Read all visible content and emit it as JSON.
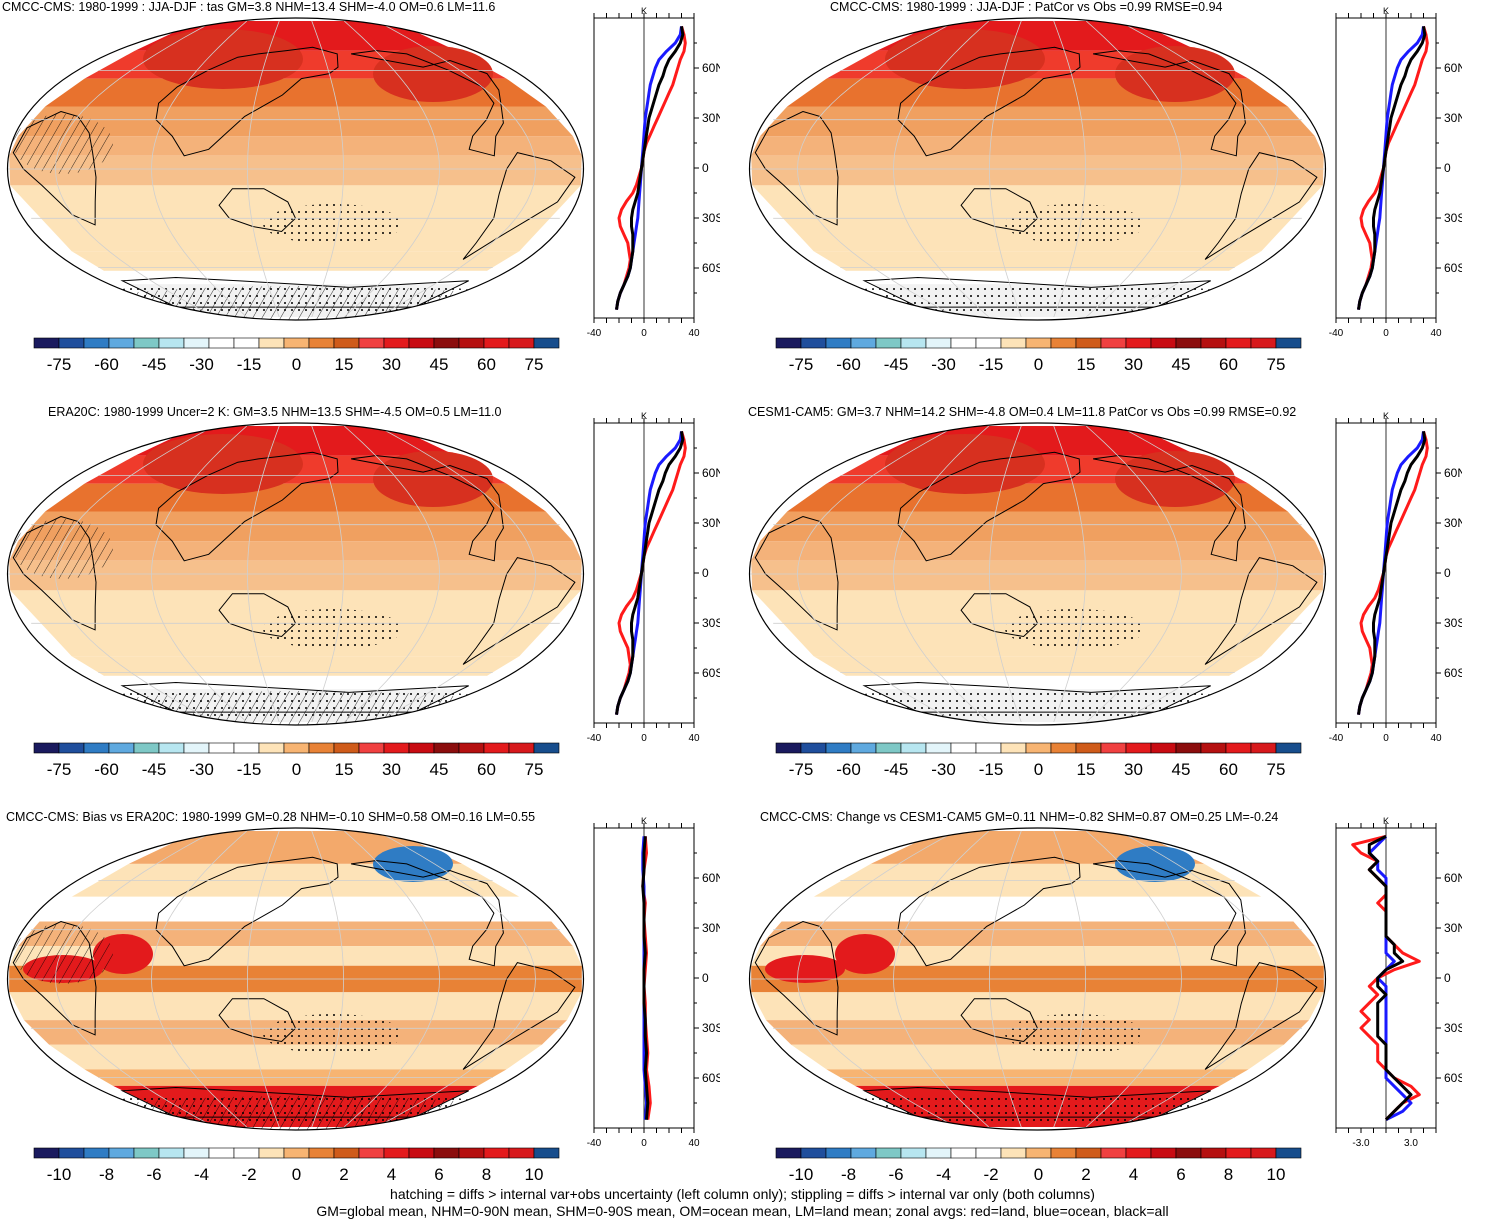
{
  "panels": [
    {
      "title": "CMCC-CMS: 1980-1999 : JJA-DJF : tas GM=3.8 NHM=13.4 SHM=-4.0 OM=0.6 LM=11.6",
      "colorbar_labels": [
        "-75",
        "-60",
        "-45",
        "-30",
        "-15",
        "0",
        "15",
        "30",
        "45",
        "60",
        "75"
      ],
      "zonal_x_ticks": [
        "-40",
        "0",
        "40"
      ],
      "zonal_y_ticks": [
        "60N",
        "30N",
        "0",
        "30S",
        "60S"
      ],
      "zonal_unit": "K",
      "hatching": true,
      "style": "warm"
    },
    {
      "title": "CMCC-CMS: 1980-1999 : JJA-DJF : PatCor vs Obs =0.99 RMSE=0.94",
      "colorbar_labels": [
        "-75",
        "-60",
        "-45",
        "-30",
        "-15",
        "0",
        "15",
        "30",
        "45",
        "60",
        "75"
      ],
      "zonal_x_ticks": [
        "-40",
        "0",
        "40"
      ],
      "zonal_y_ticks": [
        "60N",
        "30N",
        "0",
        "30S",
        "60S"
      ],
      "zonal_unit": "K",
      "hatching": false,
      "style": "warm"
    },
    {
      "title": "ERA20C: 1980-1999 Uncer=2 K: GM=3.5 NHM=13.5 SHM=-4.5 OM=0.5 LM=11.0",
      "colorbar_labels": [
        "-75",
        "-60",
        "-45",
        "-30",
        "-15",
        "0",
        "15",
        "30",
        "45",
        "60",
        "75"
      ],
      "zonal_x_ticks": [
        "-40",
        "0",
        "40"
      ],
      "zonal_y_ticks": [
        "60N",
        "30N",
        "0",
        "30S",
        "60S"
      ],
      "zonal_unit": "K",
      "hatching": true,
      "style": "warm"
    },
    {
      "title": "CESM1-CAM5: GM=3.7 NHM=14.2 SHM=-4.8 OM=0.4 LM=11.8 PatCor vs Obs =0.99 RMSE=0.92",
      "colorbar_labels": [
        "-75",
        "-60",
        "-45",
        "-30",
        "-15",
        "0",
        "15",
        "30",
        "45",
        "60",
        "75"
      ],
      "zonal_x_ticks": [
        "-40",
        "0",
        "40"
      ],
      "zonal_y_ticks": [
        "60N",
        "30N",
        "0",
        "30S",
        "60S"
      ],
      "zonal_unit": "K",
      "hatching": false,
      "style": "warm"
    },
    {
      "title": "CMCC-CMS: Bias vs ERA20C: 1980-1999 GM=0.28 NHM=-0.10 SHM=0.58 OM=0.16 LM=0.55",
      "colorbar_labels": [
        "-10",
        "-8",
        "-6",
        "-4",
        "-2",
        "0",
        "2",
        "4",
        "6",
        "8",
        "10"
      ],
      "zonal_x_ticks": [
        "-40",
        "0",
        "40"
      ],
      "zonal_y_ticks": [
        "60N",
        "30N",
        "0",
        "30S",
        "60S"
      ],
      "zonal_unit": "K",
      "hatching": true,
      "style": "diff"
    },
    {
      "title": "CMCC-CMS: Change vs CESM1-CAM5 GM=0.11 NHM=-0.82 SHM=0.87 OM=0.25 LM=-0.24",
      "colorbar_labels": [
        "-10",
        "-8",
        "-6",
        "-4",
        "-2",
        "0",
        "2",
        "4",
        "6",
        "8",
        "10"
      ],
      "zonal_x_ticks": [
        "-3.0",
        "3.0"
      ],
      "zonal_y_ticks": [
        "60N",
        "30N",
        "0",
        "30S",
        "60S"
      ],
      "zonal_unit": "K",
      "hatching": false,
      "style": "diff"
    }
  ],
  "colors": {
    "palette": [
      "#1a1a5e",
      "#1f4e9c",
      "#2f7cc4",
      "#5fa9df",
      "#7ec8c6",
      "#b7e6f0",
      "#e3f5fa",
      "#ffffff",
      "#ffffff",
      "#fde3b8",
      "#f7b472",
      "#e88236",
      "#cf5b1a",
      "#f04040",
      "#e31a1c",
      "#c80b12",
      "#8b0d0d",
      "#b51010",
      "#e31a1c",
      "#d7191c",
      "#174d8c"
    ],
    "land_line": "#ff1a1a",
    "ocean_line": "#1a1aff",
    "all_line": "#000000"
  },
  "zonal_profiles": {
    "warm": {
      "lats": [
        85,
        80,
        75,
        70,
        65,
        60,
        55,
        50,
        45,
        40,
        35,
        30,
        25,
        20,
        15,
        10,
        5,
        0,
        -5,
        -10,
        -15,
        -20,
        -25,
        -30,
        -35,
        -40,
        -45,
        -50,
        -55,
        -60,
        -65,
        -70,
        -75,
        -80,
        -85
      ],
      "land": [
        30,
        32,
        33,
        32,
        29,
        27,
        25,
        23,
        20,
        17,
        14,
        11,
        8,
        5,
        2,
        0,
        -1,
        -2,
        -4,
        -6,
        -9,
        -14,
        -18,
        -20,
        -19,
        -16,
        -13,
        -12,
        -11,
        -12,
        -14,
        -16,
        -19,
        -21,
        -22
      ],
      "ocean": [
        30,
        29,
        25,
        18,
        12,
        9,
        7,
        5,
        4,
        3,
        2,
        1,
        0.5,
        0,
        -0.5,
        -1,
        -1.5,
        -2,
        -2.5,
        -3,
        -3.5,
        -4,
        -4.5,
        -5,
        -6,
        -7,
        -8,
        -9,
        -10,
        -11,
        -13,
        -16,
        -19,
        -21,
        -22
      ],
      "all": [
        30,
        31,
        29,
        25,
        20,
        17,
        15,
        12,
        10,
        8,
        6,
        4,
        3,
        2,
        1,
        0,
        -1,
        -2,
        -3,
        -4,
        -5,
        -7,
        -9,
        -10,
        -10,
        -9,
        -9,
        -9,
        -10,
        -11,
        -13,
        -16,
        -19,
        -21,
        -22
      ]
    },
    "bias": {
      "lats": [
        85,
        75,
        65,
        55,
        45,
        35,
        25,
        15,
        5,
        -5,
        -15,
        -25,
        -35,
        -45,
        -55,
        -65,
        -75,
        -85
      ],
      "land": [
        1,
        2,
        0,
        -1,
        1,
        0,
        1,
        2,
        1,
        0,
        1,
        1,
        2,
        3,
        2,
        4,
        5,
        3
      ],
      "ocean": [
        0,
        -1,
        -1,
        0,
        0,
        0,
        0,
        0,
        0,
        0,
        0,
        0,
        0,
        0,
        0,
        1,
        2,
        1
      ],
      "all": [
        1,
        0,
        0,
        -1,
        0,
        0,
        0,
        1,
        0,
        0,
        0,
        1,
        1,
        2,
        1,
        2,
        3,
        2
      ]
    },
    "change": {
      "lats": [
        85,
        80,
        75,
        70,
        65,
        60,
        55,
        50,
        45,
        40,
        35,
        30,
        25,
        20,
        15,
        10,
        5,
        0,
        -5,
        -10,
        -15,
        -20,
        -25,
        -30,
        -35,
        -40,
        -45,
        -50,
        -55,
        -60,
        -65,
        -70,
        -75,
        -80,
        -85
      ],
      "land": [
        0,
        -4,
        -3,
        -1,
        -2,
        -1,
        0,
        0,
        -1,
        0,
        0,
        0,
        0,
        1,
        2,
        4,
        1,
        -1,
        -2,
        -1,
        -2,
        -3,
        -2,
        -3,
        -2,
        -1,
        -1,
        -1,
        0,
        1,
        3,
        4,
        2,
        1,
        0
      ],
      "ocean": [
        0,
        -1,
        -2,
        -1,
        -1,
        0,
        0,
        0,
        0,
        0,
        0,
        0,
        0,
        0,
        0,
        1,
        0,
        -1,
        0,
        0,
        0,
        0,
        0,
        0,
        0,
        0,
        0,
        0,
        0,
        0,
        1,
        2,
        3,
        2,
        0
      ],
      "all": [
        0,
        -2,
        -2,
        -1,
        -2,
        -1,
        0,
        0,
        0,
        0,
        0,
        0,
        0,
        1,
        1,
        2,
        0,
        -1,
        -1,
        0,
        -1,
        -1,
        -1,
        -1,
        -1,
        0,
        0,
        0,
        0,
        1,
        2,
        3,
        2,
        1,
        0
      ]
    }
  },
  "footer": {
    "line1": "hatching = diffs > internal var+obs uncertainty (left column only); stippling = diffs > internal var only (both columns)",
    "line2": "GM=global mean, NHM=0-90N mean, SHM=0-90S mean, OM=ocean mean, LM=land mean; zonal avgs: red=land, blue=ocean, black=all"
  }
}
